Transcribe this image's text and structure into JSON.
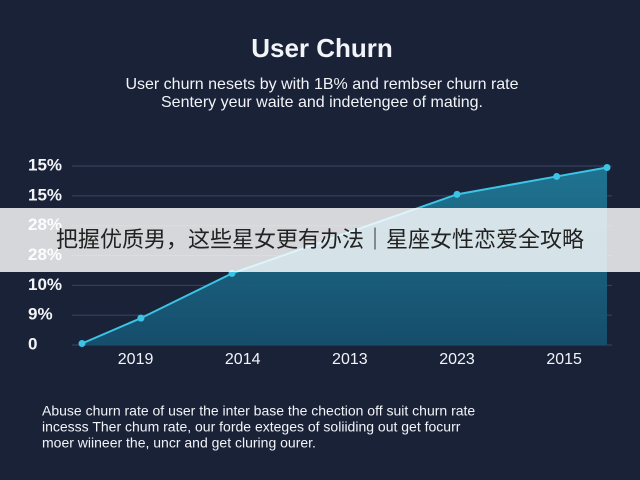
{
  "chart_data": {
    "type": "area",
    "title": "User Churn",
    "subtitle": [
      "User churn nesets by with 1B% and rembser churn rate",
      "Sentery yeur waite and indetengee of mating."
    ],
    "footer": [
      "Abuse churn rate of user the inter base the chection off suit churn rate",
      "incesss Ther chum rate, our forde exteges of soliiding out get focurr",
      "moer wiineer the, uncr and get cluring ourer."
    ],
    "banner": "把握优质男，这些星女更有办法｜星座女性恋爱全攻略",
    "x": [
      0.5,
      1.05,
      1.9,
      4.0,
      4.93,
      5.4
    ],
    "values": [
      0.05,
      0.9,
      2.4,
      5.05,
      5.65,
      5.95
    ],
    "color": "#3cc4e6",
    "fill": "#1e6f8e",
    "xlim": [
      0.5,
      5.4
    ],
    "xticks": [
      {
        "value": 1,
        "label": "2019"
      },
      {
        "value": 2,
        "label": "2014"
      },
      {
        "value": 3,
        "label": "2013"
      },
      {
        "value": 4,
        "label": "2023"
      },
      {
        "value": 5,
        "label": "2015"
      }
    ],
    "ylim": [
      0,
      6
    ],
    "yticks": [
      {
        "value": 6,
        "label": "15%"
      },
      {
        "value": 5,
        "label": "15%"
      },
      {
        "value": 4,
        "label": "28%"
      },
      {
        "value": 3,
        "label": "28%"
      },
      {
        "value": 2,
        "label": "10%"
      },
      {
        "value": 1,
        "label": "9%"
      },
      0
    ],
    "grid": true
  }
}
